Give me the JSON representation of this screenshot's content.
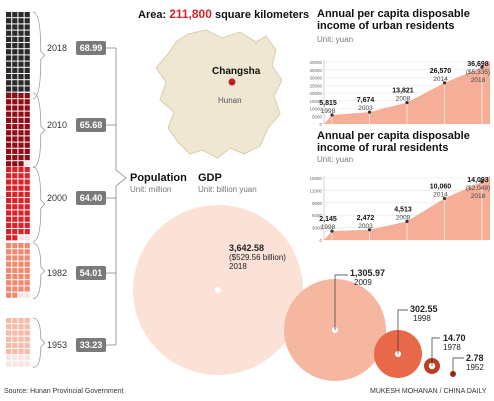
{
  "population": {
    "title": "Population",
    "unit": "Unit: million",
    "items": [
      {
        "year": "2018",
        "value": "68.99",
        "color": "#2a2a2a"
      },
      {
        "year": "2010",
        "value": "65.68",
        "color": "#8e0d16"
      },
      {
        "year": "2000",
        "value": "64.40",
        "color": "#d8232a"
      },
      {
        "year": "1982",
        "value": "54.01",
        "color": "#ef8a70"
      },
      {
        "year": "1953",
        "value": "33.23",
        "color": "#f7b9a8"
      }
    ]
  },
  "area": {
    "prefix": "Area: ",
    "value": "211,800",
    "suffix": " square kilometers",
    "capital": "Changsha",
    "province": "Hunan"
  },
  "gdp": {
    "title": "GDP",
    "unit": "Unit: billion yuan",
    "items": [
      {
        "value": "3,642.58",
        "sub": "($529.56 billion)",
        "year": "2018"
      },
      {
        "value": "1,305.97",
        "year": "2009"
      },
      {
        "value": "302.55",
        "year": "1998"
      },
      {
        "value": "14.70",
        "year": "1978"
      },
      {
        "value": "2.78",
        "year": "1952"
      }
    ]
  },
  "chart_data": [
    {
      "type": "area",
      "title": "Annual per capita disposable income of urban residents",
      "unit": "Unit: yuan",
      "x": [
        "1998",
        "2003",
        "2008",
        "2014",
        "2018"
      ],
      "values": [
        5815,
        7674,
        13821,
        26570,
        36698
      ],
      "value_labels": [
        "5,815",
        "7,674",
        "13,821",
        "26,570",
        "36,698"
      ],
      "extra_label": "($5,335)",
      "yticks": [
        "40000",
        "35000",
        "30000",
        "25000",
        "20000",
        "15000",
        "10000",
        "5000",
        "0"
      ],
      "ylim": [
        0,
        40000
      ]
    },
    {
      "type": "area",
      "title": "Annual per capita disposable income of rural residents",
      "unit": "Unit: yuan",
      "x": [
        "1998",
        "2003",
        "2008",
        "2014",
        "2018"
      ],
      "values": [
        2145,
        2472,
        4513,
        10060,
        14093
      ],
      "value_labels": [
        "2,145",
        "2,472",
        "4,513",
        "10,060",
        "14,093"
      ],
      "extra_label": "($2,049)",
      "yticks": [
        "15000",
        "12000",
        "9000",
        "6000",
        "3000",
        "0"
      ],
      "ylim": [
        0,
        15000
      ]
    }
  ],
  "footer": {
    "source": "Source: Hunan Provincial Government",
    "credit": "MUKESH MOHANAN / CHINA DAILY"
  }
}
